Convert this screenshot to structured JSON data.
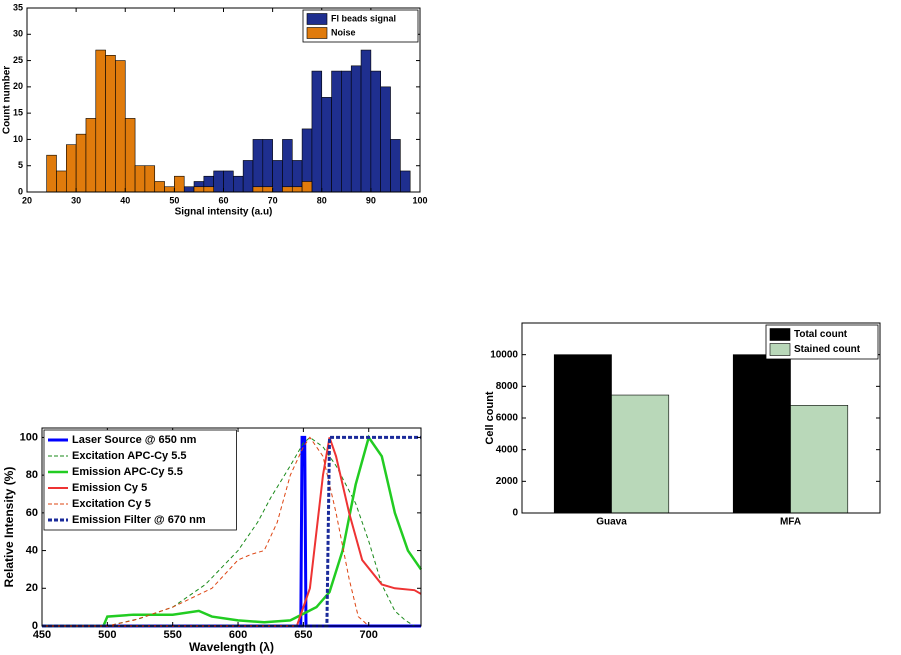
{
  "chart_data": [
    {
      "type": "histogram",
      "x_label": "Signal intensity (a.u)",
      "y_label": "Count number",
      "bins": [
        24,
        26,
        28,
        30,
        32,
        34,
        36,
        38,
        40,
        42,
        44,
        46,
        48,
        50,
        52,
        54,
        56,
        58,
        60,
        62,
        64,
        66,
        68,
        70,
        72,
        74,
        76,
        78,
        80,
        82,
        84,
        86,
        88,
        90,
        92,
        94,
        96,
        98
      ],
      "series": [
        {
          "name": "Fl beads signal",
          "color": "#1f2f8f",
          "values": [
            0,
            0,
            0,
            0,
            0,
            0,
            0,
            0,
            0,
            0,
            0,
            0,
            0,
            2,
            1,
            2,
            3,
            4,
            4,
            3,
            6,
            10,
            10,
            6,
            10,
            6,
            12,
            23,
            18,
            23,
            23,
            24,
            27,
            23,
            20,
            10,
            4
          ]
        },
        {
          "name": "Noise",
          "color": "#e07b0c",
          "values": [
            7,
            4,
            9,
            11,
            14,
            27,
            26,
            25,
            14,
            5,
            5,
            2,
            1,
            3,
            0,
            1,
            1,
            0,
            0,
            0,
            0,
            1,
            1,
            0,
            1,
            1,
            2,
            0,
            0,
            0,
            0,
            0,
            0,
            0,
            0,
            0,
            0
          ]
        }
      ],
      "xlim": [
        20,
        100
      ],
      "xticks": [
        20,
        30,
        40,
        50,
        60,
        70,
        80,
        90,
        100
      ],
      "ylim": [
        0,
        35
      ],
      "yticks": [
        0,
        5,
        10,
        15,
        20,
        25,
        30,
        35
      ],
      "legend": "upper right"
    },
    {
      "type": "line",
      "x_label": "Wavelength (λ)",
      "y_label": "Relative Intensity (%)",
      "series": [
        {
          "name": "Laser Source @ 650 nm",
          "color": "#0000ff",
          "dashed": false,
          "width": 3,
          "x": [
            450,
            648,
            649,
            650,
            651,
            652,
            740
          ],
          "values": [
            0,
            0,
            100,
            100,
            100,
            0,
            0
          ]
        },
        {
          "name": "Excitation APC-Cy 5.5",
          "color": "#1a8a1a",
          "dashed": true,
          "width": 1,
          "x": [
            450,
            500,
            525,
            550,
            575,
            600,
            615,
            625,
            640,
            650,
            655,
            665,
            675,
            690,
            700,
            710,
            720,
            728,
            735
          ],
          "values": [
            0,
            0,
            4,
            10,
            22,
            40,
            55,
            68,
            85,
            97,
            100,
            95,
            85,
            65,
            45,
            22,
            8,
            3,
            0
          ]
        },
        {
          "name": "Emission APC-Cy 5.5",
          "color": "#22cc22",
          "dashed": false,
          "width": 2.5,
          "x": [
            450,
            497,
            500,
            520,
            550,
            570,
            580,
            600,
            620,
            640,
            660,
            670,
            680,
            690,
            700,
            710,
            720,
            730,
            740
          ],
          "values": [
            0,
            0,
            5,
            6,
            6,
            8,
            5,
            3,
            2,
            3,
            10,
            18,
            40,
            75,
            100,
            90,
            60,
            40,
            30
          ]
        },
        {
          "name": "Emission Cy 5",
          "color": "#ee3333",
          "dashed": false,
          "width": 2,
          "x": [
            450,
            645,
            655,
            665,
            670,
            675,
            685,
            695,
            710,
            720,
            735,
            740
          ],
          "values": [
            0,
            0,
            20,
            80,
            100,
            90,
            60,
            35,
            22,
            20,
            19,
            17
          ]
        },
        {
          "name": "Excitation Cy 5",
          "color": "#dd4411",
          "dashed": true,
          "width": 1,
          "x": [
            450,
            500,
            520,
            550,
            580,
            600,
            610,
            620,
            630,
            640,
            650,
            655,
            665,
            675,
            685,
            692,
            700,
            740
          ],
          "values": [
            0,
            0,
            3,
            10,
            20,
            35,
            38,
            40,
            55,
            80,
            95,
            100,
            90,
            60,
            25,
            5,
            0,
            0
          ]
        },
        {
          "name": "Emission Filter @ 670 nm",
          "color": "#1a2a9a",
          "dashed": true,
          "width": 3,
          "x": [
            450,
            668,
            670,
            740
          ],
          "values": [
            0,
            0,
            100,
            100
          ]
        }
      ],
      "xlim": [
        450,
        740
      ],
      "xticks": [
        450,
        500,
        550,
        600,
        650,
        700
      ],
      "ylim": [
        0,
        105
      ],
      "yticks": [
        0,
        20,
        40,
        60,
        80,
        100
      ],
      "legend": "upper left"
    },
    {
      "type": "bar",
      "y_label": "Cell count",
      "categories": [
        "Guava",
        "MFA"
      ],
      "series": [
        {
          "name": "Total count",
          "color": "#000000",
          "values": [
            10000,
            10000
          ]
        },
        {
          "name": "Stained count",
          "color": "#b9d8b9",
          "values": [
            7450,
            6800
          ]
        }
      ],
      "ylim": [
        0,
        12000
      ],
      "yticks": [
        0,
        2000,
        4000,
        6000,
        8000,
        10000
      ],
      "legend": "upper right"
    }
  ]
}
